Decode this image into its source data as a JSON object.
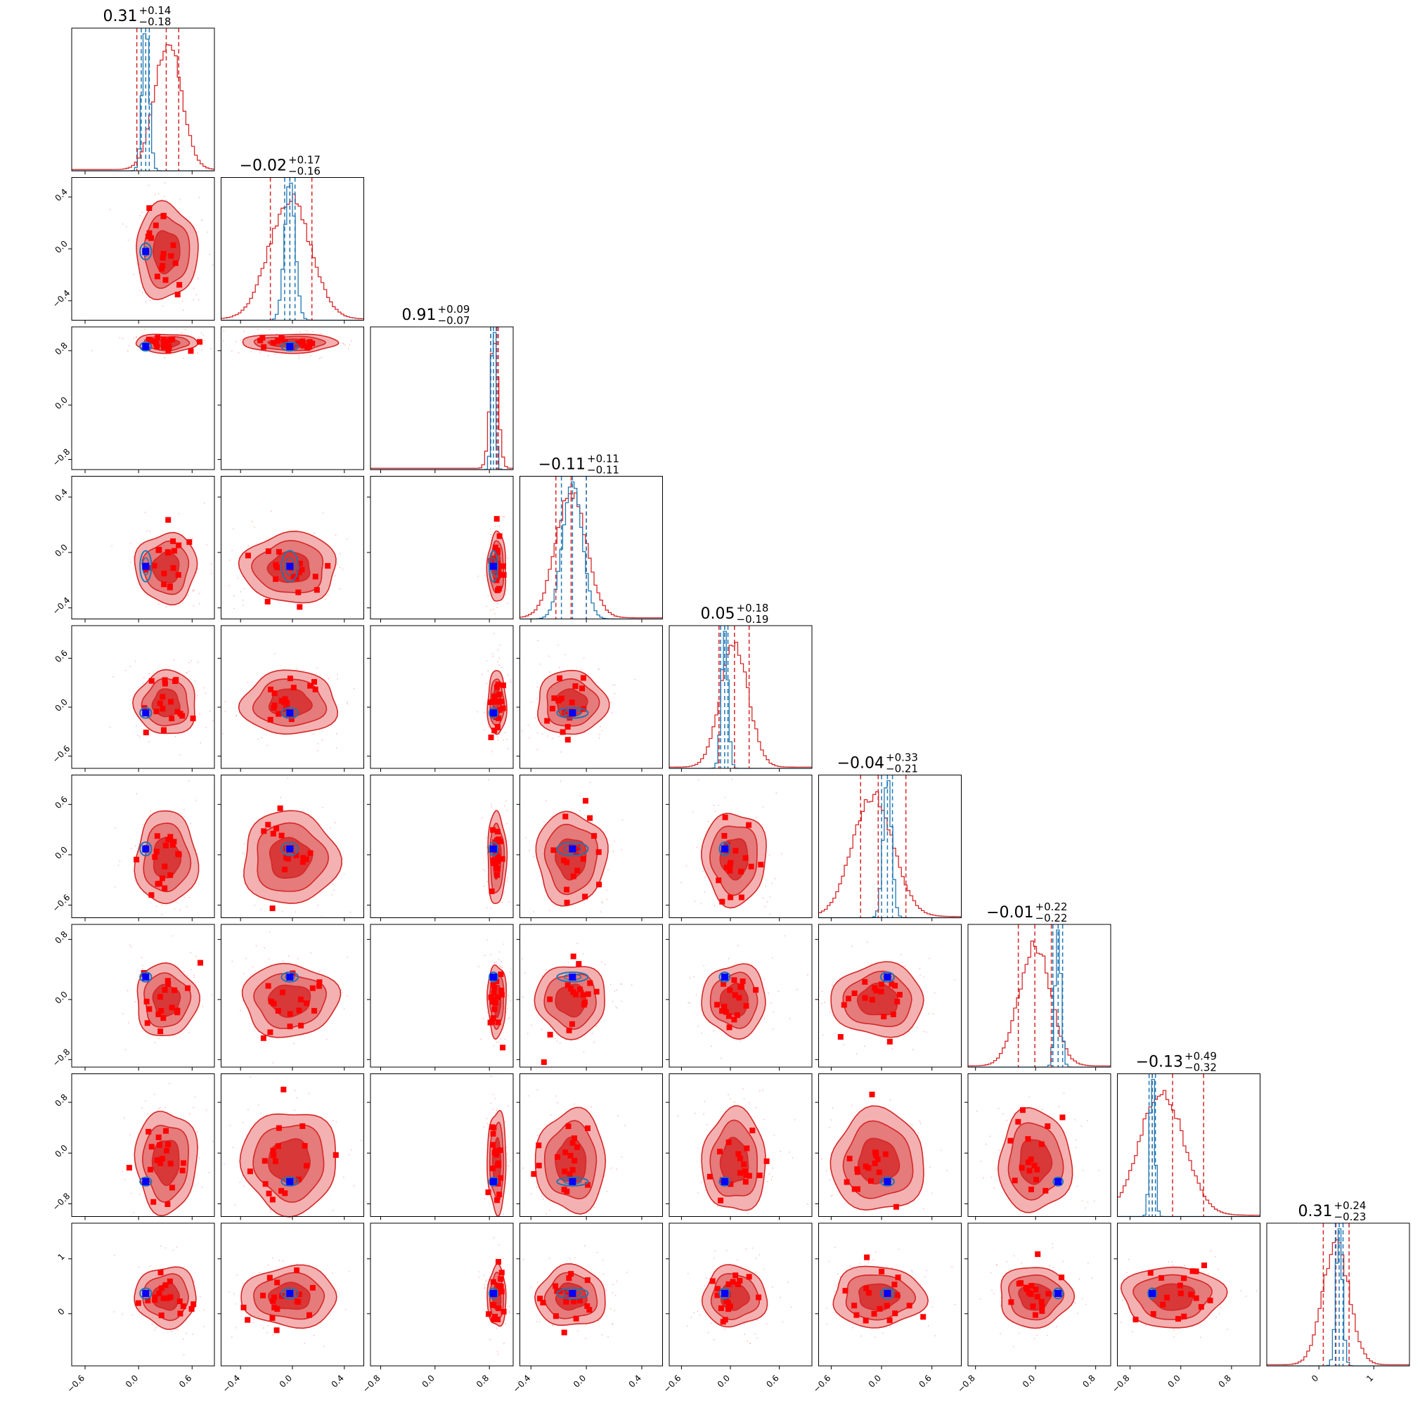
{
  "chart_data": {
    "type": "scatter",
    "layout": "corner-plot",
    "n_params": 9,
    "colors": {
      "posterior": "#d62728",
      "posterior_fill_outer": "#f3b1b1",
      "posterior_fill_mid": "#e57b7b",
      "posterior_fill_inner": "#d83838",
      "reference": "#1f77b4",
      "truth_marker": "#0000ff",
      "sample_marker": "#ff0000"
    },
    "params": [
      {
        "median": 0.31,
        "plus": 0.14,
        "minus": 0.18,
        "title": "0.31",
        "plus_label": "+0.14",
        "minus_label": "−0.18",
        "range": [
          -0.75,
          0.85
        ],
        "ticks": [
          -0.6,
          0.0,
          0.6
        ],
        "tick_labels": [
          "−0.6",
          "0.0",
          "0.6"
        ],
        "ref_median": 0.08,
        "ref_width": 0.04,
        "ref_lo": 0.03,
        "ref_hi": 0.12,
        "red_lo": -0.02,
        "red_hi": 0.45,
        "truth": 0.08,
        "red_peak": 0.33,
        "red_width": 0.15
      },
      {
        "median": -0.02,
        "plus": 0.17,
        "minus": 0.16,
        "title": "−0.02",
        "plus_label": "+0.17",
        "minus_label": "−0.16",
        "range": [
          -0.55,
          0.55
        ],
        "ticks": [
          -0.4,
          0.0,
          0.4
        ],
        "tick_labels": [
          "−0.4",
          "0.0",
          "0.4"
        ],
        "ref_median": -0.02,
        "ref_width": 0.04,
        "ref_lo": -0.06,
        "ref_hi": 0.02,
        "red_lo": -0.17,
        "red_hi": 0.15,
        "truth": -0.02,
        "red_peak": -0.02,
        "red_width": 0.16
      },
      {
        "median": 0.91,
        "plus": 0.09,
        "minus": 0.07,
        "title": "0.91",
        "plus_label": "+0.09",
        "minus_label": "−0.07",
        "range": [
          -0.95,
          1.15
        ],
        "ticks": [
          -0.8,
          0.0,
          0.8
        ],
        "tick_labels": [
          "−0.8",
          "0.0",
          "0.8"
        ],
        "ref_median": 0.86,
        "ref_width": 0.03,
        "ref_lo": 0.82,
        "ref_hi": 0.9,
        "red_lo": 0.82,
        "red_hi": 0.93,
        "truth": 0.86,
        "red_peak": 0.87,
        "red_width": 0.06
      },
      {
        "median": -0.11,
        "plus": 0.11,
        "minus": 0.11,
        "title": "−0.11",
        "plus_label": "+0.11",
        "minus_label": "−0.11",
        "range": [
          -0.48,
          0.55
        ],
        "ticks": [
          -0.4,
          0.0,
          0.4
        ],
        "tick_labels": [
          "−0.4",
          "0.0",
          "0.4"
        ],
        "ref_median": -0.1,
        "ref_width": 0.07,
        "ref_lo": -0.18,
        "ref_hi": 0.0,
        "red_lo": -0.22,
        "red_hi": 0.0,
        "truth": -0.1,
        "red_peak": -0.11,
        "red_width": 0.11
      },
      {
        "median": 0.05,
        "plus": 0.18,
        "minus": 0.19,
        "title": "0.05",
        "plus_label": "+0.18",
        "minus_label": "−0.19",
        "range": [
          -0.75,
          1.0
        ],
        "ticks": [
          -0.6,
          0.0,
          0.6
        ],
        "tick_labels": [
          "−0.6",
          "0.0",
          "0.6"
        ],
        "ref_median": -0.07,
        "ref_width": 0.04,
        "ref_lo": -0.12,
        "ref_hi": -0.03,
        "red_lo": -0.14,
        "red_hi": 0.23,
        "truth": -0.07,
        "red_peak": 0.05,
        "red_width": 0.17
      },
      {
        "median": -0.04,
        "plus": 0.33,
        "minus": 0.21,
        "title": "−0.04",
        "plus_label": "+0.33",
        "minus_label": "−0.21",
        "range": [
          -0.75,
          0.95
        ],
        "ticks": [
          -0.6,
          0.0,
          0.6
        ],
        "tick_labels": [
          "−0.6",
          "0.0",
          "0.6"
        ],
        "ref_median": 0.07,
        "ref_width": 0.05,
        "ref_lo": 0.0,
        "ref_hi": 0.13,
        "red_lo": -0.25,
        "red_hi": 0.29,
        "truth": 0.07,
        "red_peak": -0.1,
        "red_width": 0.24
      },
      {
        "median": -0.01,
        "plus": 0.22,
        "minus": 0.22,
        "title": "−0.01",
        "plus_label": "+0.22",
        "minus_label": "−0.22",
        "range": [
          -0.9,
          1.0
        ],
        "ticks": [
          -0.8,
          0.0,
          0.8
        ],
        "tick_labels": [
          "−0.8",
          "0.0",
          "0.8"
        ],
        "ref_median": 0.3,
        "ref_width": 0.04,
        "ref_lo": 0.23,
        "ref_hi": 0.36,
        "red_lo": -0.23,
        "red_hi": 0.21,
        "truth": 0.3,
        "red_peak": -0.01,
        "red_width": 0.21
      },
      {
        "median": -0.13,
        "plus": 0.49,
        "minus": 0.32,
        "title": "−0.13",
        "plus_label": "+0.49",
        "minus_label": "−0.32",
        "range": [
          -1.0,
          1.25
        ],
        "ticks": [
          -0.8,
          0.0,
          0.8
        ],
        "tick_labels": [
          "−0.8",
          "0.0",
          "0.8"
        ],
        "ref_median": -0.45,
        "ref_width": 0.04,
        "ref_lo": -0.5,
        "ref_hi": -0.4,
        "red_lo": -0.45,
        "red_hi": 0.36,
        "truth": -0.45,
        "red_peak": -0.3,
        "red_width": 0.35
      },
      {
        "median": 0.31,
        "plus": 0.24,
        "minus": 0.23,
        "title": "0.31",
        "plus_label": "+0.24",
        "minus_label": "−0.23",
        "range": [
          -0.95,
          1.65
        ],
        "ticks": [
          0,
          1
        ],
        "tick_labels": [
          "0",
          "1"
        ],
        "ref_median": 0.37,
        "ref_width": 0.06,
        "ref_lo": 0.3,
        "ref_hi": 0.44,
        "red_lo": 0.08,
        "red_hi": 0.55,
        "truth": 0.37,
        "red_peak": 0.31,
        "red_width": 0.24
      }
    ]
  }
}
